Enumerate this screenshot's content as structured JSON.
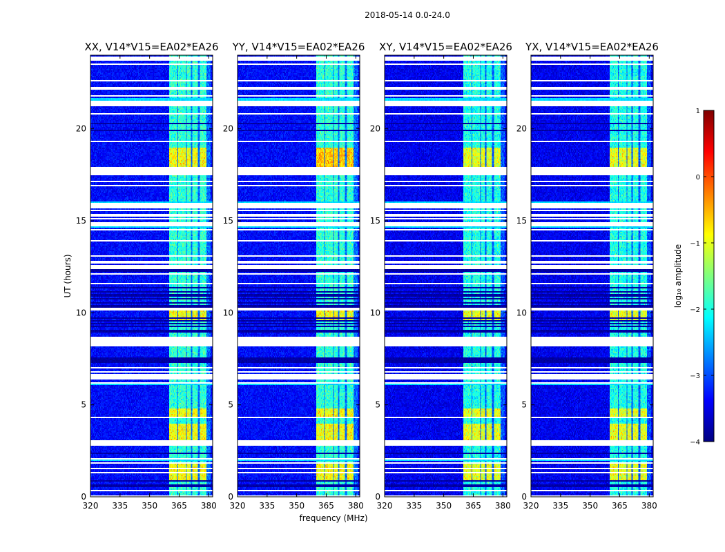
{
  "figure": {
    "suptitle": "2018-05-14 0.0-24.0"
  },
  "chart_data": {
    "type": "heatmap",
    "xlabel": "frequency (MHz)",
    "ylabel": "UT (hours)",
    "xlim": [
      320,
      382
    ],
    "ylim": [
      0,
      24
    ],
    "xticks": [
      320,
      335,
      350,
      365,
      380
    ],
    "yticks": [
      0,
      5,
      10,
      15,
      20
    ],
    "panels": [
      {
        "title": "XX, V14*V15=EA02*EA26",
        "pol": "XX"
      },
      {
        "title": "YY, V14*V15=EA02*EA26",
        "pol": "YY"
      },
      {
        "title": "XY, V14*V15=EA02*EA26",
        "pol": "XY"
      },
      {
        "title": "YX, V14*V15=EA02*EA26",
        "pol": "YX"
      }
    ],
    "rfi_band_mhz": [
      360,
      381
    ],
    "rfi_channels_mhz": [
      [
        360,
        364
      ],
      [
        364.5,
        368.5
      ],
      [
        369,
        371
      ],
      [
        371.5,
        374.5
      ],
      [
        375.5,
        379
      ]
    ],
    "strong_rfi_hours": [
      [
        0.8,
        1.8
      ],
      [
        3.0,
        4.0
      ],
      [
        4.3,
        4.8
      ],
      [
        9.6,
        10.2
      ],
      [
        17.8,
        19.0
      ]
    ],
    "flagged_hours": [
      0.05,
      0.35,
      1.3,
      1.55,
      1.85,
      2.05,
      2.85,
      3.0,
      4.3,
      6.2,
      6.45,
      6.6,
      6.8,
      7.0,
      8.25,
      8.35,
      8.45,
      8.55,
      8.65,
      10.2,
      11.6,
      12.1,
      12.45,
      12.55,
      12.75,
      13.1,
      13.9,
      14.5,
      14.75,
      14.85,
      15.1,
      15.3,
      15.55,
      15.75,
      15.9,
      16.9,
      17.15,
      17.5,
      17.6,
      17.8,
      17.9,
      19.3,
      20.8,
      21.3,
      21.5,
      21.8,
      22.2,
      22.6,
      23.5,
      23.8,
      23.9
    ],
    "dark_hours": [
      0.6,
      0.85,
      2.35,
      9.0,
      9.25,
      9.4,
      9.55,
      9.7,
      10.35,
      10.55,
      10.75,
      10.95,
      11.15,
      11.35,
      12.3,
      19.9,
      20.3
    ],
    "colorbar": {
      "label": "log₁₀ amplitude",
      "vmin": -4,
      "vmax": 1,
      "ticks": [
        1,
        0,
        -1,
        -2,
        -3,
        -4
      ],
      "colormap": "jet",
      "colors": [
        "#00007f",
        "#0000ff",
        "#007fff",
        "#00ffff",
        "#7fff7f",
        "#ffff00",
        "#ff7f00",
        "#ff0000",
        "#7f0000"
      ]
    }
  }
}
